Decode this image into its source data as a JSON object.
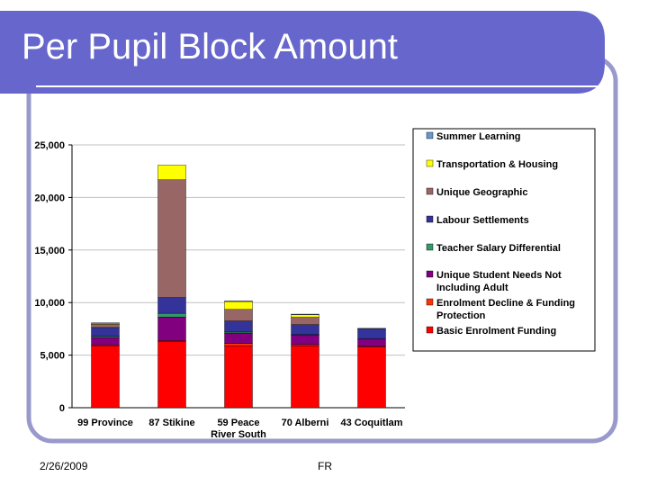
{
  "slide": {
    "title": "Per Pupil Block Amount",
    "footer_date": "2/26/2009",
    "footer_center": "FR"
  },
  "theme": {
    "title_bar": "#6666cc",
    "frame_border": "#9999cc"
  },
  "chart_data": {
    "type": "bar",
    "stacked": true,
    "title": "",
    "xlabel": "",
    "ylabel": "",
    "ylim": [
      0,
      25000
    ],
    "yticks": [
      0,
      5000,
      10000,
      15000,
      20000,
      25000
    ],
    "ytick_labels": [
      "0",
      "5,000",
      "10,000",
      "15,000",
      "20,000",
      "25,000"
    ],
    "grid": true,
    "legend_position": "right",
    "categories": [
      [
        "99 Province"
      ],
      [
        "87 Stikine"
      ],
      [
        "59 Peace",
        "River South"
      ],
      [
        "70 Alberni"
      ],
      [
        "43 Coquitlam"
      ]
    ],
    "series": [
      {
        "name": "Basic Enrolment Funding",
        "color": "#ff0000",
        "values": [
          5900,
          6300,
          5900,
          5900,
          5800
        ]
      },
      {
        "name": "Enrolment Decline & Funding Protection",
        "color": "#ff3300",
        "values": [
          80,
          80,
          200,
          100,
          50
        ]
      },
      {
        "name": "Unique Student Needs Not Including Adult",
        "color": "#800080",
        "values": [
          700,
          2250,
          1000,
          900,
          700
        ]
      },
      {
        "name": "Teacher Salary Differential",
        "color": "#339966",
        "values": [
          100,
          350,
          100,
          50,
          0
        ]
      },
      {
        "name": "Labour Settlements",
        "color": "#333399",
        "values": [
          850,
          1500,
          1050,
          950,
          950
        ]
      },
      {
        "name": "Unique Geographic",
        "color": "#996666",
        "values": [
          300,
          11200,
          1100,
          700,
          0
        ]
      },
      {
        "name": "Transportation & Housing",
        "color": "#ffff00",
        "values": [
          100,
          1400,
          750,
          250,
          0
        ]
      },
      {
        "name": "Summer Learning",
        "color": "#6699cc",
        "values": [
          50,
          0,
          50,
          50,
          50
        ]
      }
    ],
    "legend_lines": [
      [
        "Summer Learning"
      ],
      [
        "Transportation & Housing"
      ],
      [
        "Unique Geographic"
      ],
      [
        "Labour Settlements"
      ],
      [
        "Teacher Salary Differential"
      ],
      [
        "Unique Student Needs Not",
        "Including Adult"
      ],
      [
        "Enrolment Decline & Funding",
        "Protection"
      ],
      [
        "Basic Enrolment Funding"
      ]
    ]
  }
}
